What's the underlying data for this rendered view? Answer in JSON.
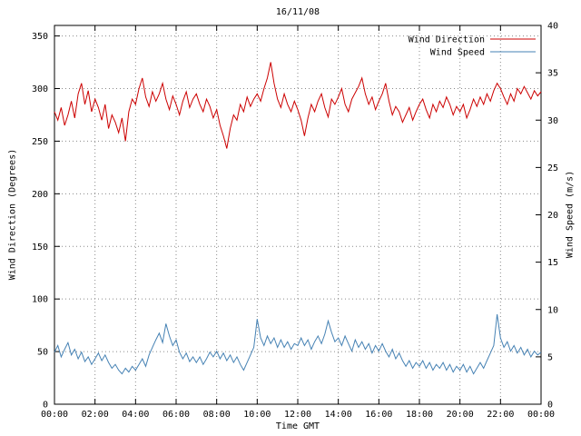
{
  "page": {
    "background": "#ffffff"
  },
  "chart_data": {
    "type": "line",
    "title": "16/11/08",
    "xlabel": "Time GMT",
    "grid": true,
    "x_tick_labels": [
      "00:00",
      "02:00",
      "04:00",
      "06:00",
      "08:00",
      "10:00",
      "12:00",
      "14:00",
      "16:00",
      "18:00",
      "20:00",
      "22:00",
      "00:00"
    ],
    "y_left": {
      "label": "Wind Direction (Degrees)",
      "min": 0,
      "max": 360,
      "ticks": [
        0,
        50,
        100,
        150,
        200,
        250,
        300,
        350
      ]
    },
    "y_right": {
      "label": "Wind Speed (m/s)",
      "min": 0,
      "max": 40,
      "ticks": [
        0,
        5,
        10,
        15,
        20,
        25,
        30,
        35,
        40
      ]
    },
    "legend": {
      "position": "top-right",
      "entries": [
        {
          "label": "Wind Direction",
          "color": "#cc0000"
        },
        {
          "label": "Wind Speed",
          "color": "#4682b4"
        }
      ]
    },
    "series": [
      {
        "name": "Wind Direction",
        "axis": "left",
        "color": "#cc0000",
        "values": [
          278,
          270,
          282,
          265,
          275,
          288,
          272,
          295,
          305,
          285,
          298,
          278,
          290,
          282,
          270,
          285,
          262,
          275,
          268,
          258,
          272,
          250,
          278,
          290,
          285,
          300,
          310,
          292,
          283,
          297,
          288,
          295,
          305,
          290,
          280,
          293,
          285,
          275,
          288,
          297,
          282,
          290,
          295,
          285,
          278,
          290,
          283,
          272,
          280,
          265,
          255,
          243,
          262,
          275,
          270,
          285,
          278,
          292,
          283,
          290,
          295,
          288,
          300,
          310,
          325,
          305,
          290,
          282,
          295,
          285,
          278,
          288,
          280,
          270,
          255,
          272,
          285,
          278,
          288,
          295,
          282,
          273,
          290,
          285,
          292,
          300,
          285,
          278,
          290,
          296,
          302,
          310,
          295,
          285,
          292,
          280,
          288,
          295,
          305,
          288,
          275,
          283,
          278,
          268,
          275,
          282,
          270,
          278,
          285,
          290,
          280,
          272,
          285,
          278,
          288,
          282,
          292,
          285,
          275,
          283,
          278,
          285,
          272,
          280,
          290,
          283,
          292,
          285,
          295,
          288,
          298,
          305,
          300,
          292,
          285,
          295,
          288,
          300,
          295,
          302,
          296,
          290,
          298,
          293,
          297
        ]
      },
      {
        "name": "Wind Speed",
        "axis": "right",
        "color": "#4682b4",
        "values": [
          5.5,
          6.2,
          5.0,
          5.8,
          6.5,
          5.2,
          5.8,
          4.8,
          5.5,
          4.5,
          5.0,
          4.2,
          4.8,
          5.4,
          4.6,
          5.2,
          4.4,
          3.8,
          4.2,
          3.6,
          3.2,
          3.8,
          3.4,
          4.0,
          3.6,
          4.2,
          4.8,
          4.0,
          5.2,
          6.0,
          6.8,
          7.5,
          6.5,
          8.5,
          7.2,
          6.2,
          6.8,
          5.5,
          4.8,
          5.4,
          4.5,
          5.0,
          4.4,
          5.0,
          4.2,
          4.8,
          5.5,
          5.0,
          5.6,
          4.8,
          5.4,
          4.6,
          5.2,
          4.4,
          5.0,
          4.2,
          3.6,
          4.4,
          5.2,
          6.0,
          9.0,
          7.0,
          6.2,
          7.2,
          6.4,
          7.0,
          6.0,
          6.8,
          6.0,
          6.6,
          5.8,
          6.4,
          6.2,
          7.0,
          6.2,
          6.8,
          5.8,
          6.6,
          7.2,
          6.4,
          7.4,
          8.8,
          7.6,
          6.6,
          7.0,
          6.2,
          7.2,
          6.4,
          5.6,
          6.8,
          6.0,
          6.6,
          5.8,
          6.4,
          5.4,
          6.2,
          5.6,
          6.4,
          5.6,
          5.0,
          5.8,
          4.8,
          5.4,
          4.6,
          4.0,
          4.6,
          3.8,
          4.4,
          4.0,
          4.6,
          3.8,
          4.4,
          3.6,
          4.2,
          3.8,
          4.4,
          3.6,
          4.2,
          3.4,
          4.0,
          3.6,
          4.2,
          3.4,
          4.0,
          3.2,
          3.8,
          4.4,
          3.8,
          4.6,
          5.4,
          6.2,
          9.5,
          7.0,
          6.0,
          6.6,
          5.6,
          6.2,
          5.4,
          6.0,
          5.2,
          5.8,
          5.0,
          5.6,
          5.2,
          5.5
        ]
      }
    ]
  }
}
